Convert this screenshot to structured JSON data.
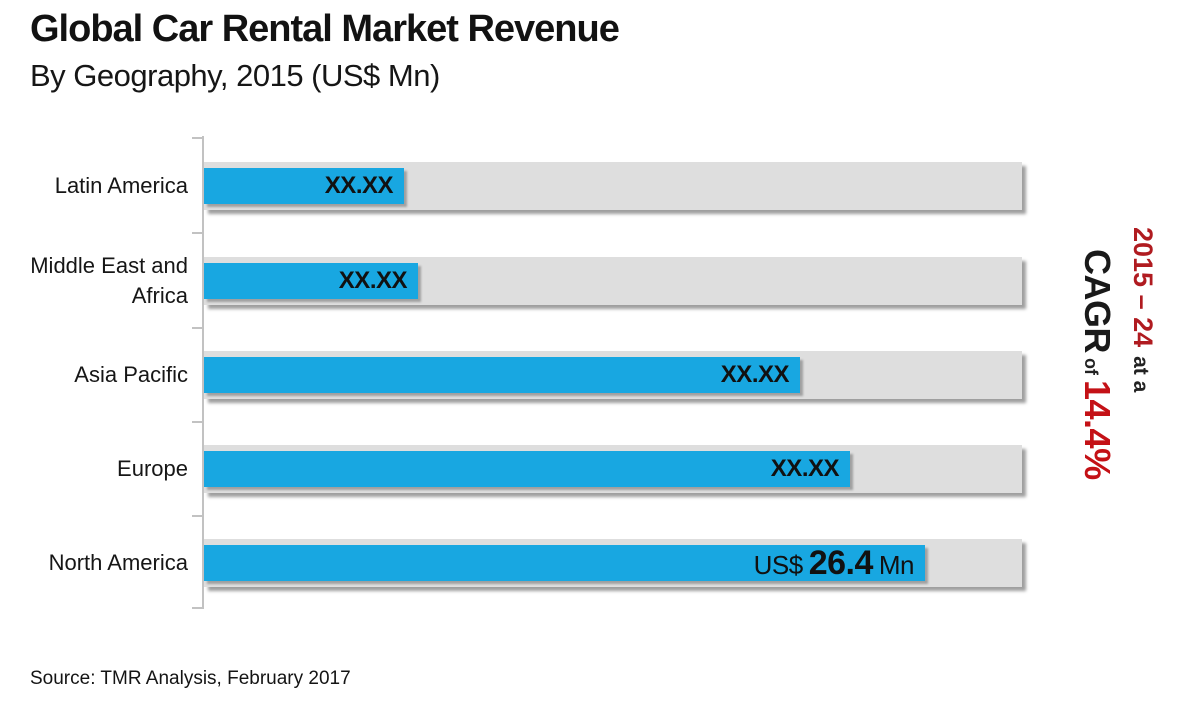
{
  "title": "Global Car Rental Market Revenue",
  "subtitle": "By Geography, 2015 (US$ Mn)",
  "source": "Source: TMR Analysis, February 2017",
  "cagr_annotation": {
    "period": "2015 – 24",
    "connector1": "at a",
    "metric": "CAGR",
    "connector2": "of",
    "rate": "14.4%"
  },
  "colors": {
    "bar_blue": "#18a7e1",
    "track_gray": "#dedede",
    "period_red": "#b01b20",
    "rate_red": "#c41116",
    "text_dark": "#1a1a1a"
  },
  "chart_data": {
    "type": "bar",
    "orientation": "horizontal",
    "title": "Global Car Rental Market Revenue",
    "subtitle": "By Geography, 2015 (US$ Mn)",
    "unit": "US$ Mn",
    "categories": [
      "Latin America",
      "Middle East and Africa",
      "Asia Pacific",
      "Europe",
      "North America"
    ],
    "values": [
      null,
      null,
      null,
      null,
      26.4
    ],
    "value_labels": [
      "XX.XX",
      "XX.XX",
      "XX.XX",
      "XX.XX",
      "US$ 26.4 Mn"
    ],
    "na_label_parts": {
      "prefix": "US$",
      "value": "26.4",
      "suffix": "Mn"
    },
    "bar_length_fractions_of_track": [
      0.245,
      0.262,
      0.729,
      0.79,
      0.881
    ],
    "gridlines": false,
    "legend": false,
    "xlabel": "",
    "ylabel": ""
  }
}
